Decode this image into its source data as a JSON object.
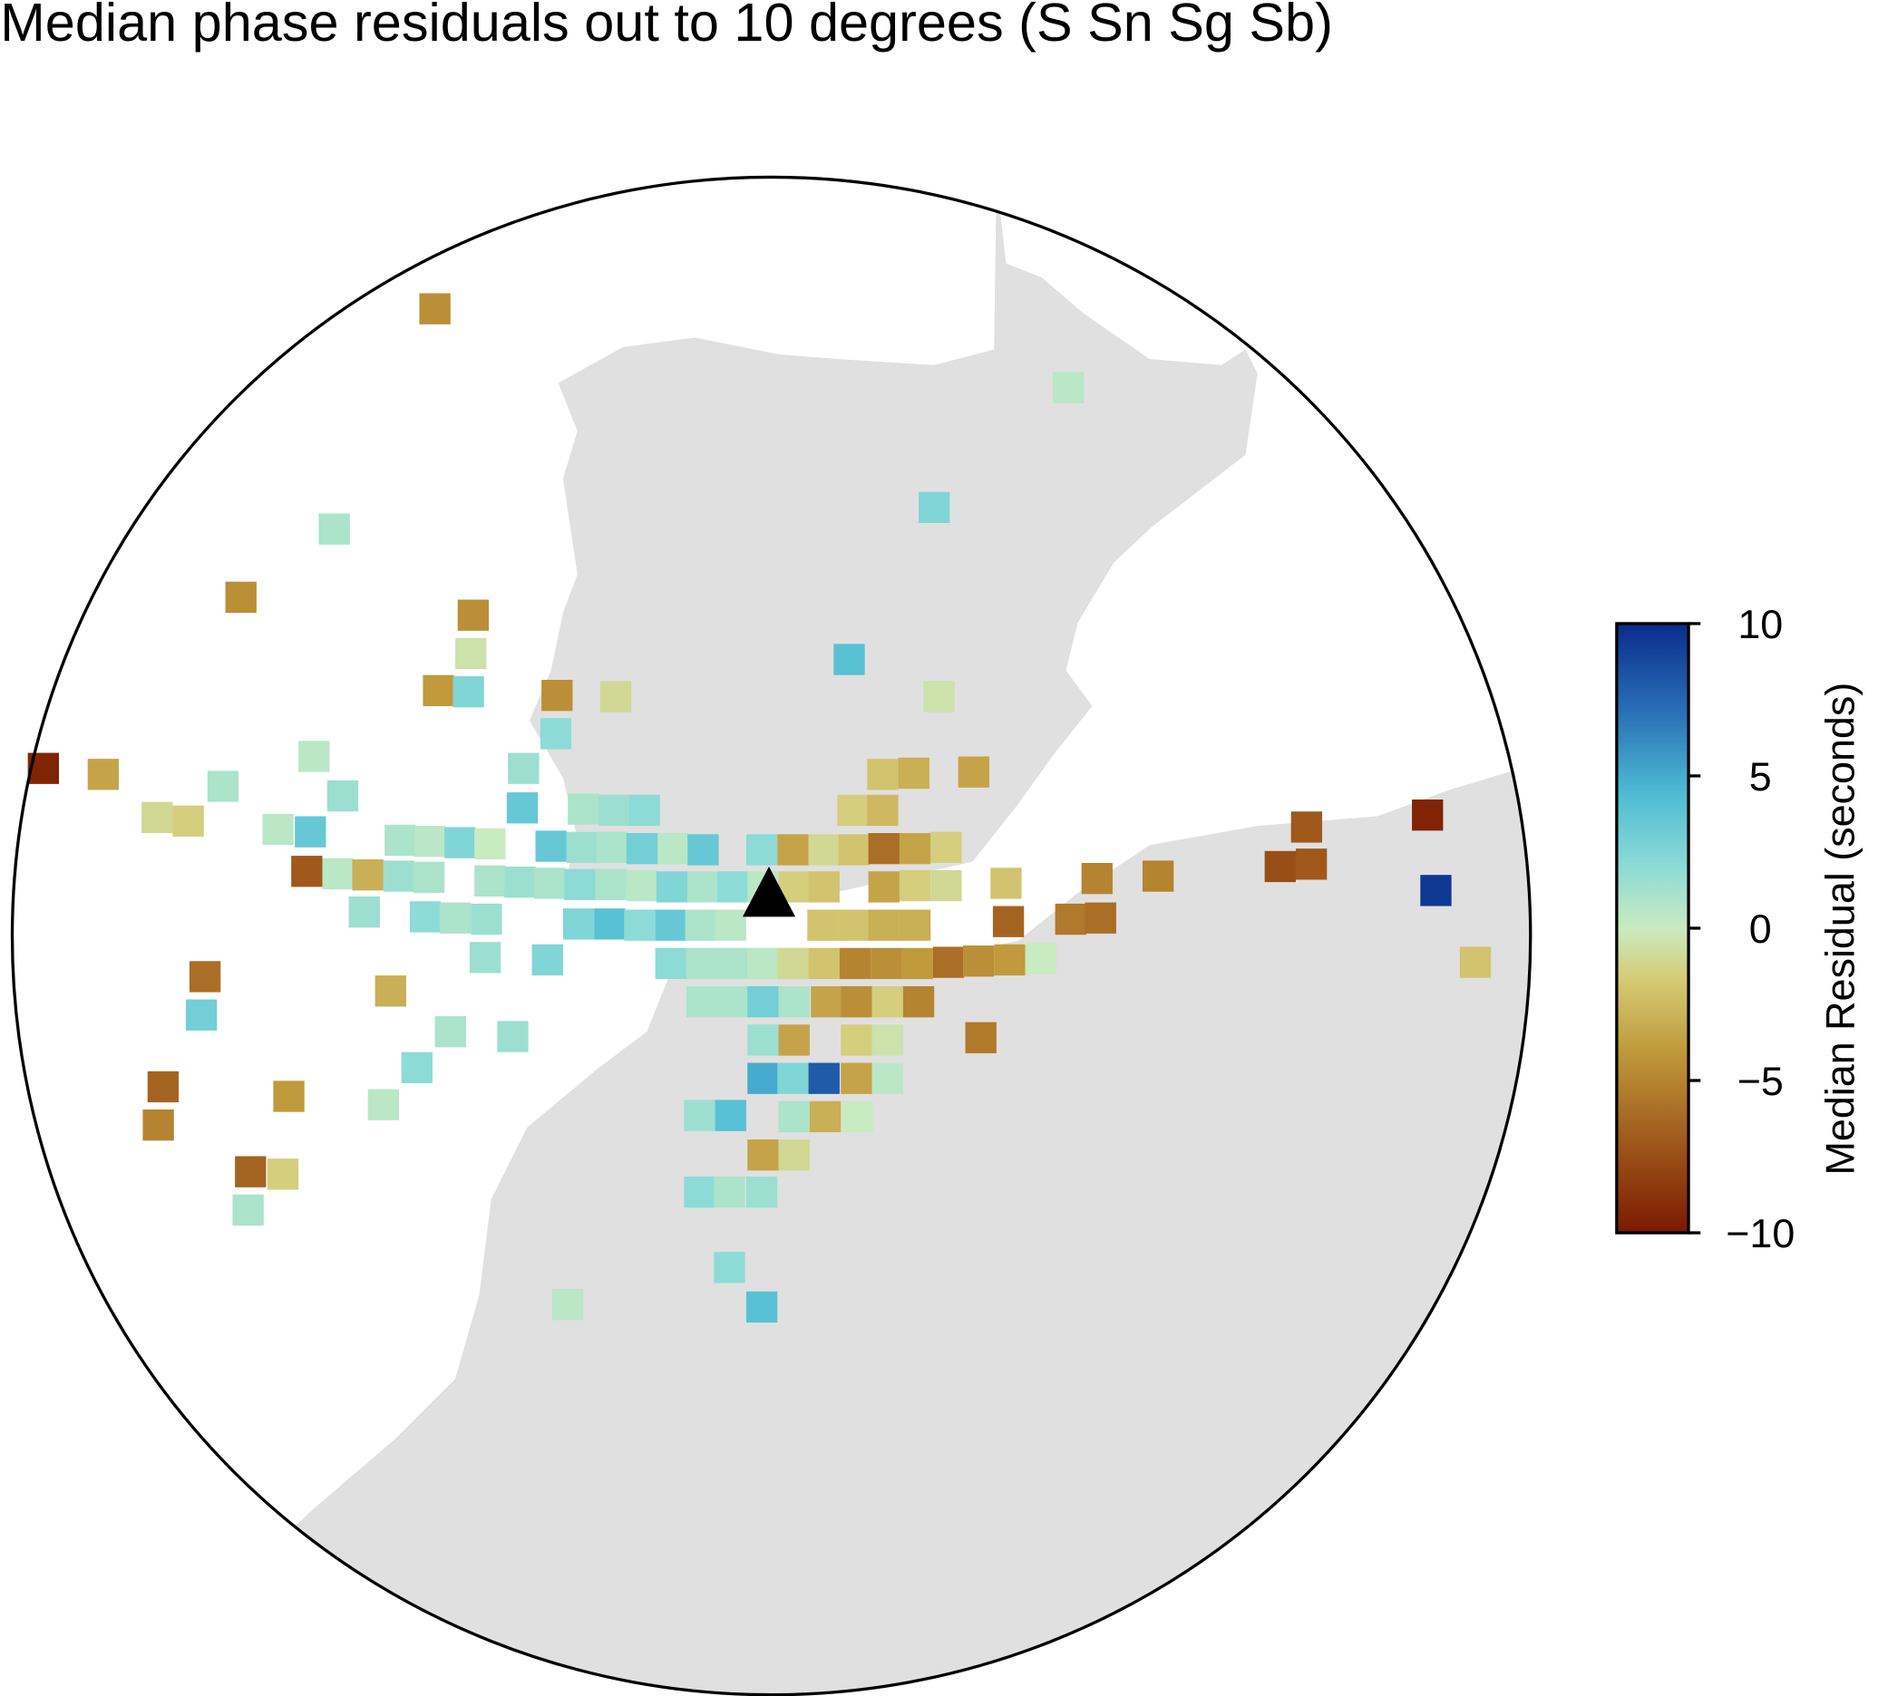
{
  "chart_data": {
    "type": "map",
    "title": "Median phase residuals out to 10 degrees (S Sn Sg Sb)",
    "colorbar_label": "Median Residual (seconds)",
    "clim": [
      -10,
      10
    ],
    "cticks": [
      {
        "value": -10,
        "label": "−10"
      },
      {
        "value": -5,
        "label": "−5"
      },
      0,
      5,
      10
    ],
    "values": [
      -4.5,
      0.5,
      2.5,
      1,
      -4.5,
      -4.5,
      -0.5,
      4,
      -4,
      2.5,
      -4.5,
      -1,
      -0.5,
      2,
      -9.5,
      -3.5,
      0.5,
      1,
      1.5,
      -2,
      -3,
      -3.5,
      1.5,
      -1,
      -1.5,
      3.5,
      1,
      1.5,
      2,
      -1.5,
      -2.5,
      0.5,
      3.5,
      1,
      0.5,
      2.5,
      0,
      3.5,
      1.5,
      1,
      3,
      0.5,
      3.5,
      2,
      -3.5,
      -1,
      -2,
      -6,
      -3.5,
      -1.5,
      -7,
      0.5,
      -3,
      1.5,
      1,
      1,
      1.5,
      1,
      2,
      1,
      0.5,
      2.5,
      1,
      2,
      0.5,
      -1.5,
      -2,
      -3.5,
      -1.5,
      -1,
      -2,
      -5,
      -5,
      -7.5,
      -7,
      -7,
      -9.5,
      9.5,
      1.5,
      2,
      1,
      1.5,
      2.5,
      4,
      2,
      3.5,
      1,
      0.5,
      -2,
      -2,
      -3,
      -3,
      -6.5,
      -5.5,
      -6,
      1.5,
      2.5,
      2,
      1,
      1,
      0.5,
      -1,
      -2,
      -5,
      -4.5,
      -4,
      -6,
      -4.5,
      -4,
      0,
      -2,
      -6,
      -3,
      3,
      1,
      1,
      3,
      1,
      -3.5,
      -4.5,
      -1.5,
      -5,
      1,
      1.5,
      1.5,
      -3.5,
      -1.5,
      -0.5,
      -5.5,
      2,
      -6.5,
      5,
      2.5,
      8,
      -3.5,
      0.5,
      -4,
      -5,
      0.5,
      1.5,
      4,
      1,
      -3,
      0,
      -3.5,
      -1,
      -6.5,
      -1.5,
      2,
      1,
      1.5,
      1,
      2,
      0.5,
      4
    ]
  }
}
